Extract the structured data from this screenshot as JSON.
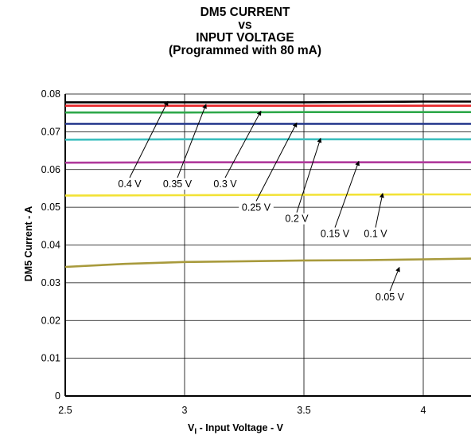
{
  "chart_data": {
    "type": "line",
    "title_lines": [
      "DM5 CURRENT",
      "vs",
      "INPUT VOLTAGE",
      "(Programmed with 80 mA)"
    ],
    "xlabel_prefix": "V",
    "xlabel_sub": "I",
    "xlabel_rest": " - Input Voltage - V",
    "ylabel": "DM5 Current - A",
    "xlim": [
      2.5,
      4.2
    ],
    "ylim": [
      0,
      0.08
    ],
    "x_ticks": [
      2.5,
      3,
      3.5,
      4
    ],
    "x_tick_labels": [
      "2.5",
      "3",
      "3.5",
      "4"
    ],
    "y_ticks": [
      0,
      0.01,
      0.02,
      0.03,
      0.04,
      0.05,
      0.06,
      0.07,
      0.08
    ],
    "y_tick_labels": [
      "0",
      "0.01",
      "0.02",
      "0.03",
      "0.04",
      "0.05",
      "0.06",
      "0.07",
      "0.08"
    ],
    "grid": true,
    "series": [
      {
        "name": "0.4 V",
        "color": "#000000",
        "x": [
          2.5,
          3.0,
          3.5,
          4.0,
          4.2
        ],
        "y": [
          0.0778,
          0.0778,
          0.0778,
          0.078,
          0.078
        ]
      },
      {
        "name": "0.35 V",
        "color": "#e8262a",
        "x": [
          2.5,
          3.0,
          3.5,
          4.0,
          4.2
        ],
        "y": [
          0.0769,
          0.0769,
          0.0769,
          0.0769,
          0.0769
        ]
      },
      {
        "name": "0.3 V",
        "color": "#2ea84a",
        "x": [
          2.5,
          3.0,
          3.5,
          4.0,
          4.2
        ],
        "y": [
          0.0751,
          0.0751,
          0.0752,
          0.0752,
          0.0752
        ]
      },
      {
        "name": "0.25 V",
        "color": "#2a3d8f",
        "x": [
          2.5,
          3.0,
          3.5,
          4.0,
          4.2
        ],
        "y": [
          0.0721,
          0.0721,
          0.0721,
          0.0721,
          0.0721
        ]
      },
      {
        "name": "0.2 V",
        "color": "#3dbfbf",
        "x": [
          2.5,
          3.0,
          3.5,
          4.0,
          4.2
        ],
        "y": [
          0.0679,
          0.068,
          0.068,
          0.068,
          0.068
        ]
      },
      {
        "name": "0.15 V",
        "color": "#b03a9c",
        "x": [
          2.5,
          3.0,
          3.5,
          4.0,
          4.2
        ],
        "y": [
          0.0618,
          0.0619,
          0.0619,
          0.0619,
          0.0619
        ]
      },
      {
        "name": "0.1 V",
        "color": "#f2e236",
        "x": [
          2.5,
          3.0,
          3.5,
          4.0,
          4.2
        ],
        "y": [
          0.0531,
          0.0532,
          0.0533,
          0.0534,
          0.0534
        ]
      },
      {
        "name": "0.05 V",
        "color": "#a89a3c",
        "x": [
          2.5,
          2.75,
          3.0,
          3.25,
          3.5,
          3.75,
          4.0,
          4.2
        ],
        "y": [
          0.0342,
          0.035,
          0.0355,
          0.0357,
          0.0359,
          0.036,
          0.0362,
          0.0364
        ]
      }
    ],
    "annotations": [
      {
        "text": "0.4 V",
        "x": 2.77,
        "y": 0.0553,
        "arrow_to": [
          2.93,
          0.0781
        ]
      },
      {
        "text": "0.35 V",
        "x": 2.97,
        "y": 0.0553,
        "arrow_to": [
          3.09,
          0.0773
        ]
      },
      {
        "text": "0.3 V",
        "x": 3.17,
        "y": 0.0553,
        "arrow_to": [
          3.32,
          0.0755
        ]
      },
      {
        "text": "0.25 V",
        "x": 3.3,
        "y": 0.0491,
        "arrow_to": [
          3.47,
          0.0724
        ]
      },
      {
        "text": "0.2 V",
        "x": 3.47,
        "y": 0.0461,
        "arrow_to": [
          3.57,
          0.0683
        ]
      },
      {
        "text": "0.15 V",
        "x": 3.63,
        "y": 0.0421,
        "arrow_to": [
          3.73,
          0.0622
        ]
      },
      {
        "text": "0.1 V",
        "x": 3.8,
        "y": 0.0421,
        "arrow_to": [
          3.83,
          0.0537
        ]
      },
      {
        "text": "0.05 V",
        "x": 3.86,
        "y": 0.0253,
        "arrow_to": [
          3.9,
          0.0341
        ]
      }
    ]
  }
}
